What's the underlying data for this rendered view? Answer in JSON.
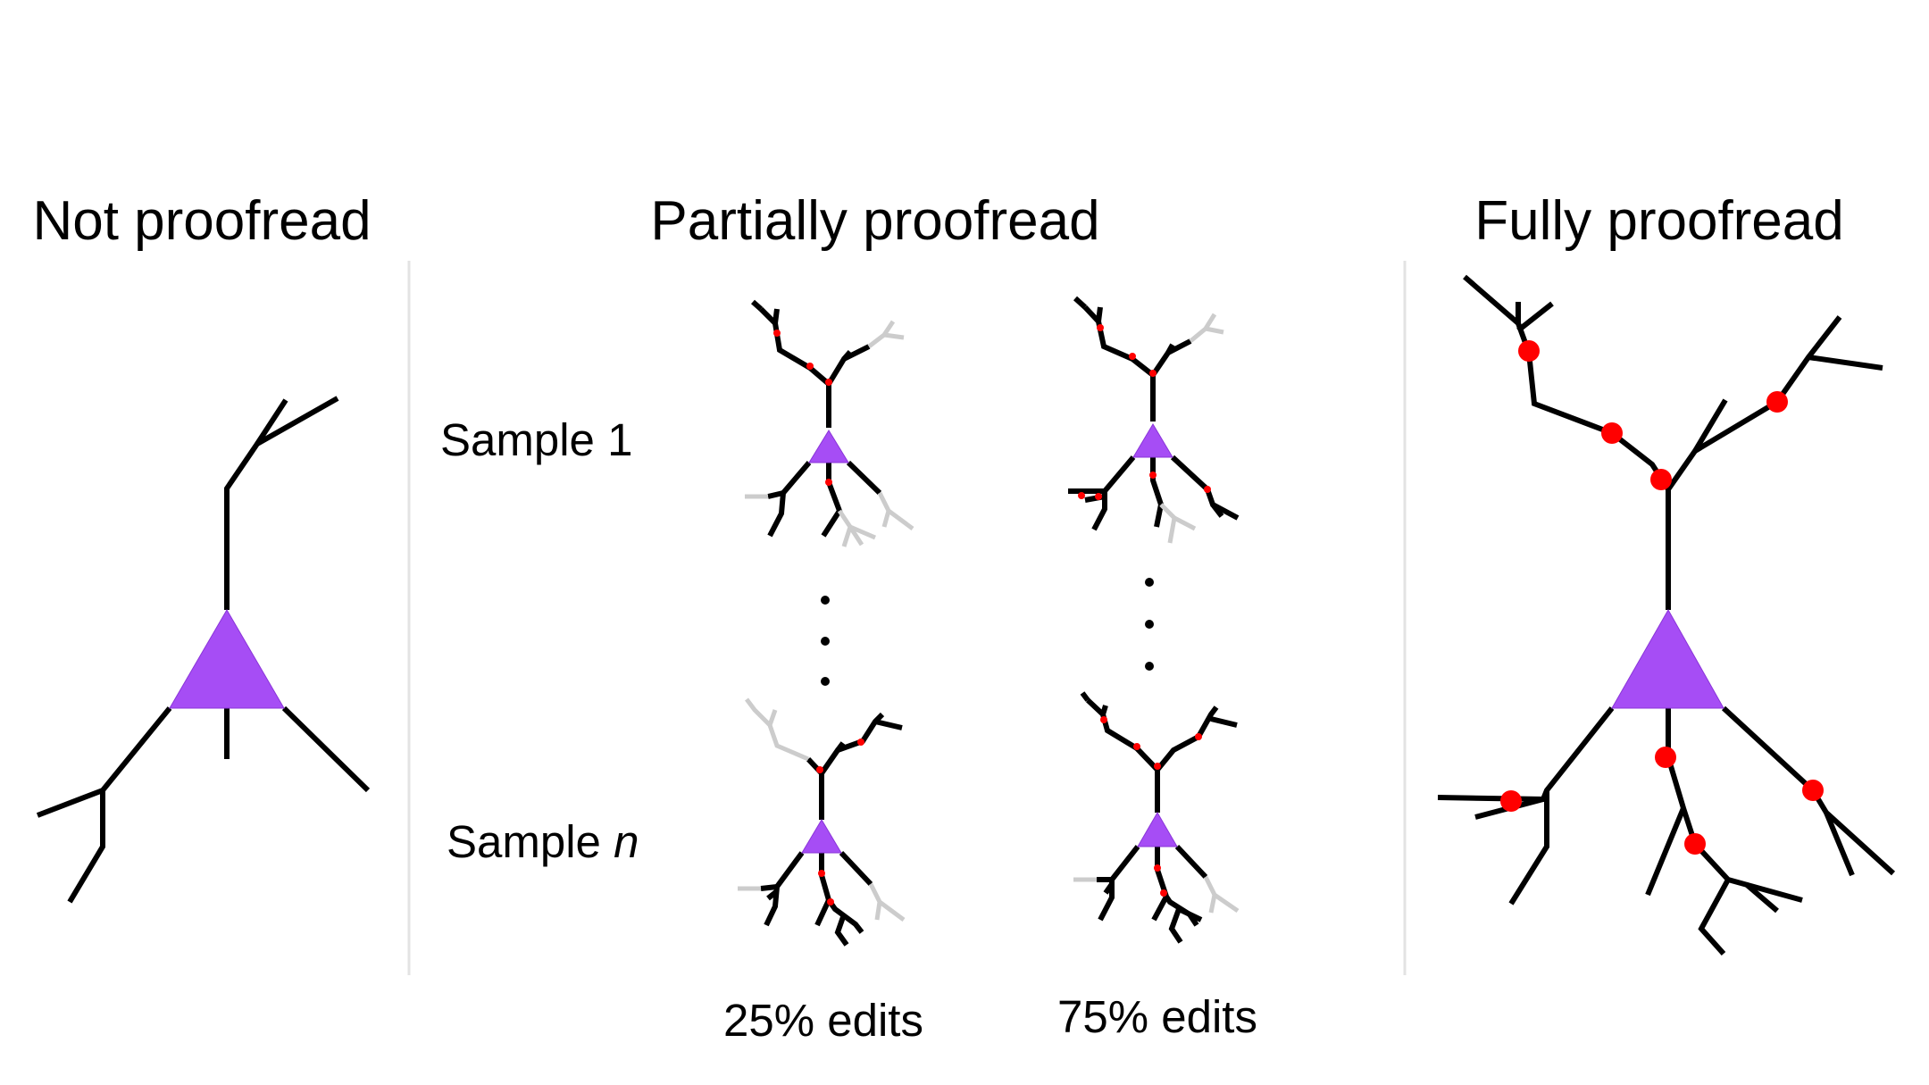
{
  "titles": {
    "not": "Not proofread",
    "partial": "Partially proofread",
    "full": "Fully proofread"
  },
  "rows": {
    "sample1": "Sample 1",
    "samplen_prefix": "Sample ",
    "samplen_var": "n"
  },
  "columns": {
    "c25": "25% edits",
    "c75": "75% edits"
  },
  "colors": {
    "soma": "#a64df5",
    "edit": "#ff0000",
    "branch": "#000000",
    "unproofread_branch": "#cccccc"
  }
}
